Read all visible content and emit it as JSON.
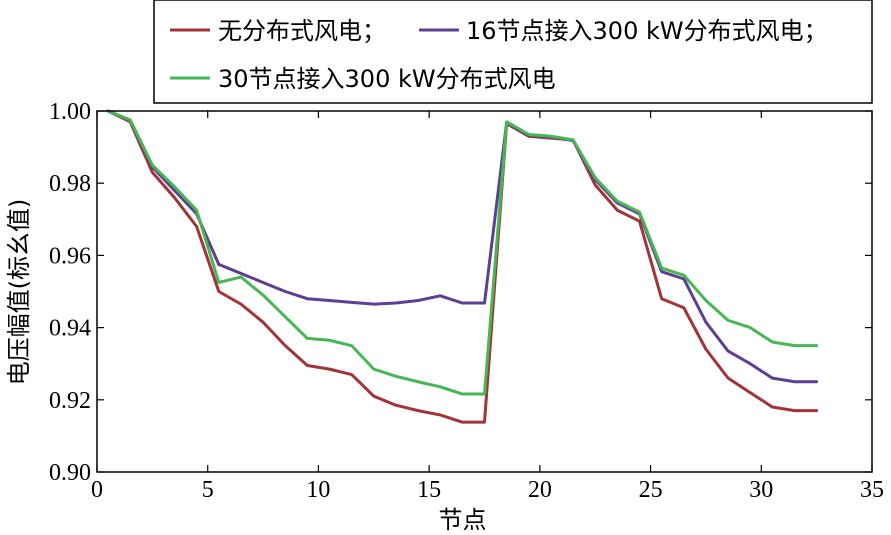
{
  "chart_data": {
    "type": "line",
    "title": "",
    "xlabel": "节点",
    "ylabel": "电压幅值(标幺值)",
    "xlim": [
      0,
      35
    ],
    "ylim": [
      0.9,
      1.0
    ],
    "xticks": [
      0,
      5,
      10,
      15,
      20,
      25,
      30,
      35
    ],
    "xtick_labels": [
      "0",
      "5",
      "10",
      "15",
      "20",
      "25",
      "30",
      "35"
    ],
    "yticks": [
      0.9,
      0.92,
      0.94,
      0.96,
      0.98,
      1.0
    ],
    "ytick_labels": [
      "0.90",
      "0.92",
      "0.94",
      "0.96",
      "0.98",
      "1.00"
    ],
    "grid": false,
    "legend_position": "top-right",
    "x": [
      0.5,
      1.5,
      2.5,
      3.5,
      4.5,
      5.5,
      6.5,
      7.5,
      8.5,
      9.5,
      10.5,
      11.5,
      12.5,
      13.5,
      14.5,
      15.5,
      16.5,
      17.5,
      18.5,
      19.5,
      20.5,
      21.5,
      22.5,
      23.5,
      24.5,
      25.5,
      26.5,
      27.5,
      28.5,
      29.5,
      30.5,
      31.5,
      32.5
    ],
    "series": [
      {
        "name": "无分布式风电；",
        "color": "#a23338",
        "values": [
          1.0,
          0.997,
          0.983,
          0.976,
          0.968,
          0.95,
          0.9465,
          0.9415,
          0.935,
          0.9295,
          0.9285,
          0.927,
          0.921,
          0.9185,
          0.917,
          0.9158,
          0.9138,
          0.9138,
          0.9965,
          0.993,
          0.9925,
          0.992,
          0.9795,
          0.9725,
          0.9695,
          0.948,
          0.9455,
          0.934,
          0.926,
          0.922,
          0.918,
          0.917,
          0.917
        ]
      },
      {
        "name": "16节点接入300 kW分布式风电；",
        "color": "#5d3f93",
        "values": [
          1.0,
          0.9975,
          0.9845,
          0.978,
          0.9715,
          0.9575,
          0.955,
          0.9525,
          0.95,
          0.948,
          0.9475,
          0.947,
          0.9465,
          0.9468,
          0.9475,
          0.9488,
          0.9468,
          0.9468,
          0.9968,
          0.9932,
          0.9928,
          0.9918,
          0.981,
          0.9745,
          0.9715,
          0.9555,
          0.9535,
          0.9415,
          0.9335,
          0.93,
          0.926,
          0.925,
          0.925
        ]
      },
      {
        "name": "30节点接入300 kW分布式风电",
        "color": "#45b753",
        "values": [
          1.0,
          0.9975,
          0.985,
          0.979,
          0.9725,
          0.9525,
          0.954,
          0.949,
          0.943,
          0.937,
          0.9365,
          0.935,
          0.9285,
          0.9265,
          0.925,
          0.9236,
          0.9216,
          0.9216,
          0.997,
          0.9935,
          0.993,
          0.992,
          0.9815,
          0.975,
          0.972,
          0.9565,
          0.9545,
          0.9475,
          0.942,
          0.94,
          0.936,
          0.935,
          0.935
        ]
      }
    ]
  }
}
